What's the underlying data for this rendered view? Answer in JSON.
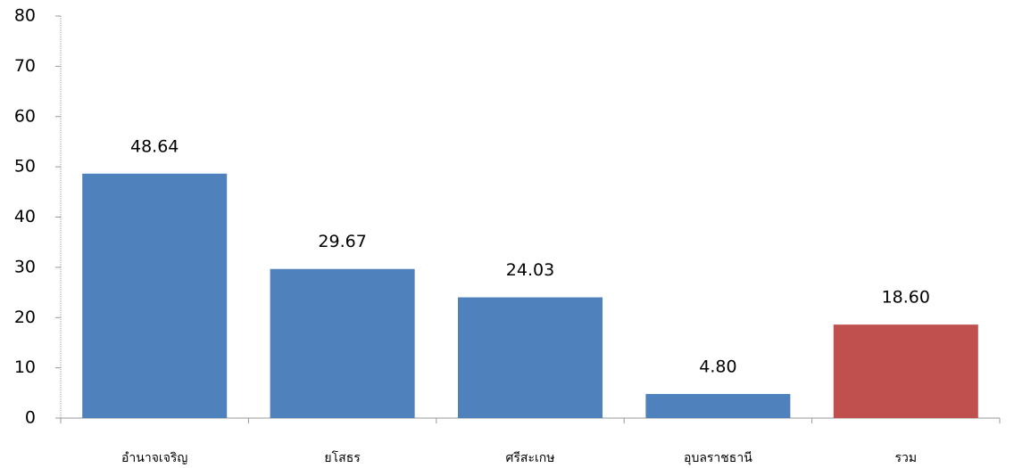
{
  "chart_data": {
    "type": "bar",
    "categories": [
      "อำนาจเจริญ",
      "ยโสธร",
      "ศรีสะเกษ",
      "อุบลราชธานี",
      "รวม"
    ],
    "values": [
      48.64,
      29.67,
      24.03,
      4.8,
      18.6
    ],
    "value_labels": [
      "48.64",
      "29.67",
      "24.03",
      "4.80",
      "18.60"
    ],
    "colors": [
      "#4f81bd",
      "#4f81bd",
      "#4f81bd",
      "#4f81bd",
      "#c0504d"
    ],
    "ylim": [
      0,
      80
    ],
    "yticks": [
      0,
      10,
      20,
      30,
      40,
      50,
      60,
      70,
      80
    ]
  }
}
